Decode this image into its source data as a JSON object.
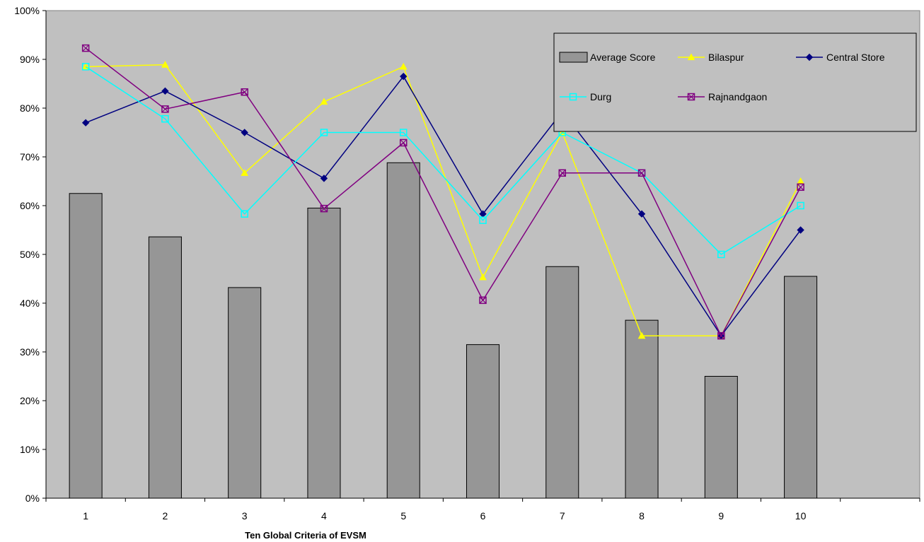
{
  "chart_data": {
    "type": "bar",
    "title": "",
    "xlabel": "Ten Global Criteria of EVSM",
    "ylabel": "",
    "categories": [
      "1",
      "2",
      "3",
      "4",
      "5",
      "6",
      "7",
      "8",
      "9",
      "10"
    ],
    "x_slots": 11,
    "ylim": [
      0,
      100
    ],
    "y_ticks": [
      0,
      10,
      20,
      30,
      40,
      50,
      60,
      70,
      80,
      90,
      100
    ],
    "y_tick_labels": [
      "0%",
      "10%",
      "20%",
      "30%",
      "40%",
      "50%",
      "60%",
      "70%",
      "80%",
      "90%",
      "100%"
    ],
    "grid": false,
    "legend_position": "top-right",
    "plot_background": "#c0c0c0",
    "bar_series": {
      "name": "Average Score",
      "color": "#969696",
      "values": [
        62.5,
        53.6,
        43.2,
        59.5,
        68.8,
        31.5,
        47.5,
        36.5,
        25.0,
        45.5
      ]
    },
    "series": [
      {
        "name": "Bilaspur",
        "type": "line",
        "color": "#ffff00",
        "marker": "triangle",
        "values": [
          88.5,
          88.9,
          66.7,
          81.3,
          88.5,
          45.3,
          75.0,
          33.3,
          33.3,
          65.0
        ]
      },
      {
        "name": "Central Store",
        "type": "line",
        "color": "#000080",
        "marker": "diamond",
        "values": [
          77.0,
          83.5,
          75.0,
          65.6,
          86.5,
          58.3,
          79.3,
          58.3,
          33.3,
          55.0
        ]
      },
      {
        "name": "Durg",
        "type": "line",
        "color": "#00ffff",
        "marker": "square",
        "values": [
          88.5,
          77.8,
          58.3,
          75.0,
          75.0,
          57.0,
          75.0,
          66.7,
          50.0,
          60.0
        ]
      },
      {
        "name": "Rajnandgaon",
        "type": "line",
        "color": "#800080",
        "marker": "square-x",
        "values": [
          92.3,
          79.8,
          83.3,
          59.4,
          72.9,
          40.6,
          66.7,
          66.7,
          33.3,
          63.8
        ]
      }
    ]
  }
}
